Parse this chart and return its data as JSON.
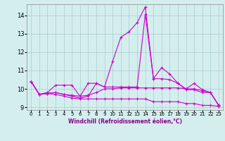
{
  "xlabel": "Windchill (Refroidissement éolien,°C)",
  "background_color": "#d4eeee",
  "grid_color": "#aacccc",
  "line_color": "#cc00cc",
  "xlim": [
    -0.5,
    23.5
  ],
  "ylim": [
    8.85,
    14.6
  ],
  "yticks": [
    9,
    10,
    11,
    12,
    13,
    14
  ],
  "xticks": [
    0,
    1,
    2,
    3,
    4,
    5,
    6,
    7,
    8,
    9,
    10,
    11,
    12,
    13,
    14,
    15,
    16,
    17,
    18,
    19,
    20,
    21,
    22,
    23
  ],
  "xtick_labels": [
    "0",
    "1",
    "2",
    "3",
    "4",
    "5",
    "6",
    "7",
    "8",
    "9",
    "10",
    "11",
    "12",
    "13",
    "14",
    "15",
    "16",
    "17",
    "18",
    "19",
    "20",
    "21",
    "22",
    "23"
  ],
  "series": [
    [
      10.4,
      9.7,
      9.8,
      10.2,
      10.2,
      10.2,
      9.6,
      10.3,
      10.3,
      10.1,
      11.5,
      12.8,
      13.1,
      13.6,
      14.45,
      10.55,
      11.15,
      10.8,
      10.3,
      10.0,
      10.3,
      9.95,
      9.8,
      9.1
    ],
    [
      10.4,
      9.7,
      9.75,
      9.7,
      9.6,
      9.5,
      9.45,
      9.45,
      9.45,
      9.45,
      9.45,
      9.45,
      9.45,
      9.45,
      9.45,
      9.3,
      9.3,
      9.3,
      9.3,
      9.2,
      9.2,
      9.1,
      9.1,
      9.05
    ],
    [
      10.4,
      9.7,
      9.75,
      9.8,
      9.7,
      9.65,
      9.6,
      9.65,
      9.8,
      10.0,
      10.0,
      10.05,
      10.05,
      10.05,
      10.05,
      10.05,
      10.05,
      10.05,
      10.05,
      10.0,
      10.0,
      9.9,
      9.8,
      9.1
    ],
    [
      10.4,
      9.7,
      9.75,
      9.8,
      9.7,
      9.6,
      9.5,
      9.6,
      10.3,
      10.1,
      10.1,
      10.1,
      10.1,
      10.1,
      14.05,
      10.55,
      10.55,
      10.5,
      10.3,
      9.95,
      9.95,
      9.8,
      9.8,
      9.1
    ]
  ]
}
